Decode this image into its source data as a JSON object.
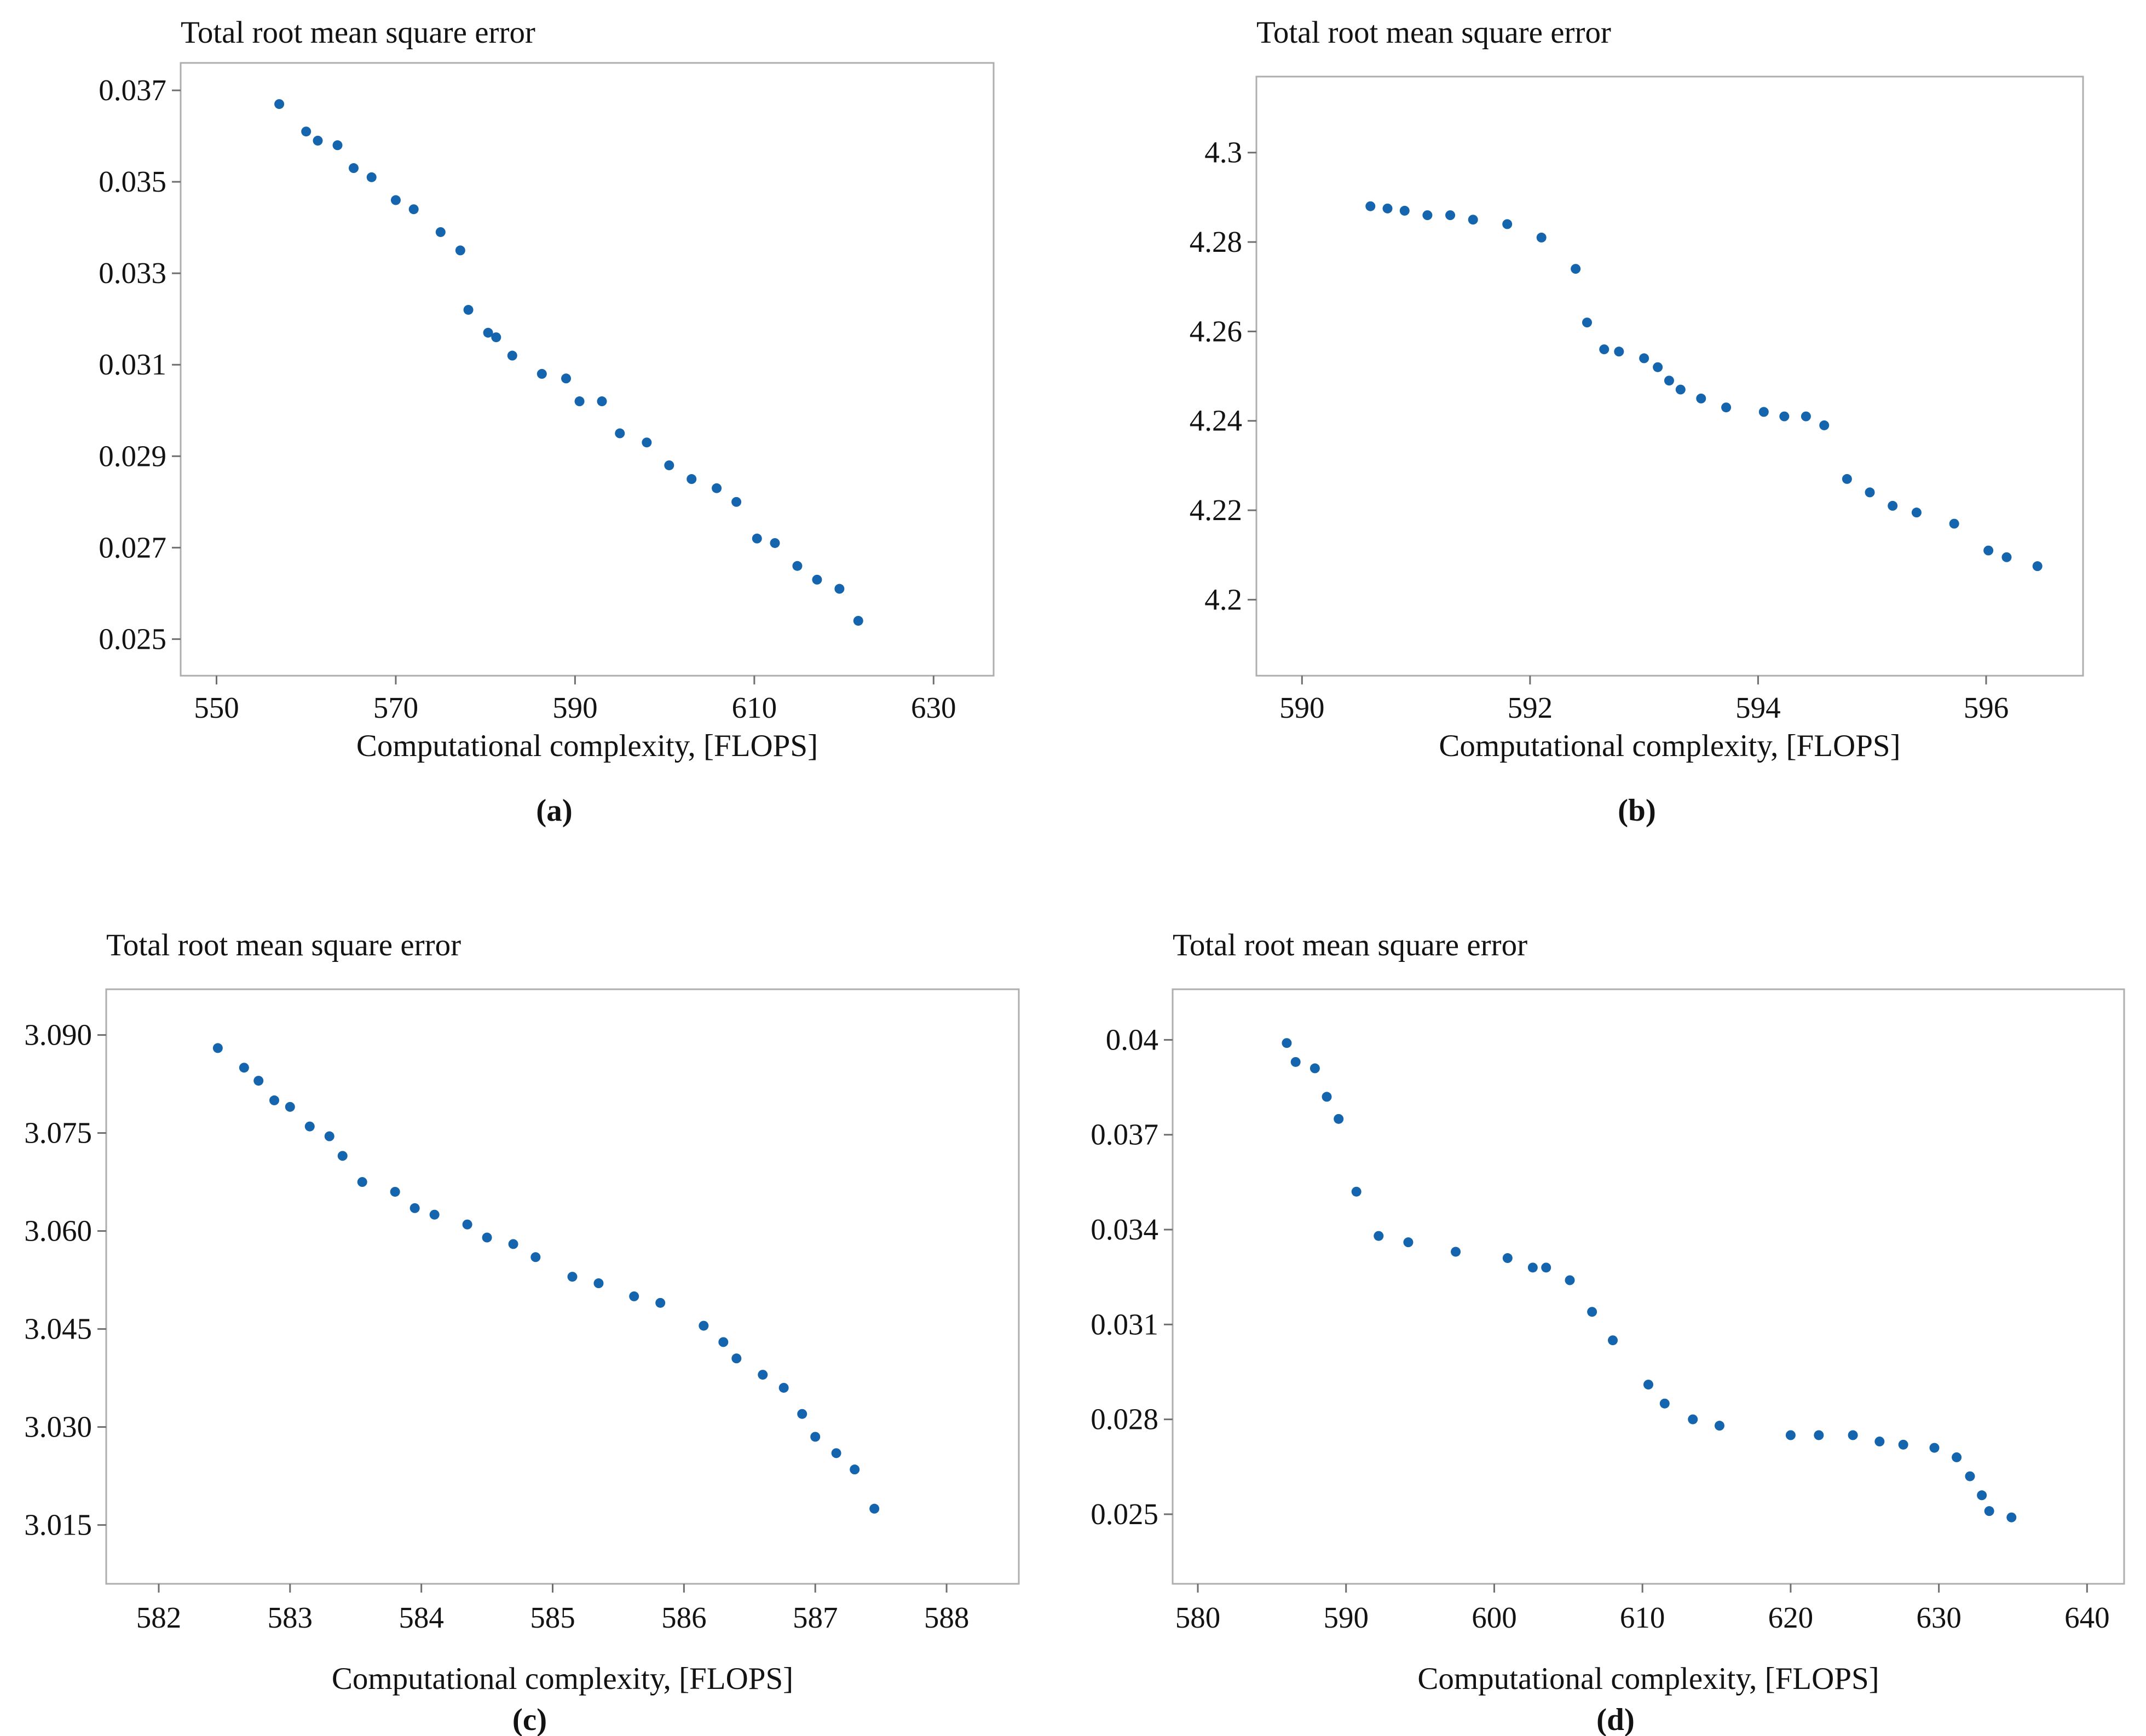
{
  "figure": {
    "background_color": "#ffffff",
    "point_color": "#1565ae",
    "frame_color": "#aeaeae",
    "tick_color": "#6f6f6f",
    "text_color": "#131313"
  },
  "chart_data": [
    {
      "id": "a",
      "type": "scatter",
      "title": "Total root mean square error",
      "xlabel": "Computational complexity, [FLOPS]",
      "caption": "(a)",
      "legend": "none",
      "grid": "off",
      "xlim": [
        546,
        636.7
      ],
      "ylim": [
        0.0242,
        0.0376
      ],
      "xticks": [
        {
          "v": 550,
          "label": "550"
        },
        {
          "v": 570,
          "label": "570"
        },
        {
          "v": 590,
          "label": "590"
        },
        {
          "v": 610,
          "label": "610"
        },
        {
          "v": 630,
          "label": "630"
        }
      ],
      "yticks": [
        {
          "v": 0.037,
          "label": "0.037"
        },
        {
          "v": 0.035,
          "label": "0.035"
        },
        {
          "v": 0.033,
          "label": "0.033"
        },
        {
          "v": 0.031,
          "label": "0.031"
        },
        {
          "v": 0.029,
          "label": "0.029"
        },
        {
          "v": 0.027,
          "label": "0.027"
        },
        {
          "v": 0.025,
          "label": "0.025"
        }
      ],
      "points": [
        [
          557,
          0.0367
        ],
        [
          560,
          0.0361
        ],
        [
          561.3,
          0.0359
        ],
        [
          563.5,
          0.0358
        ],
        [
          565.3,
          0.0353
        ],
        [
          567.3,
          0.0351
        ],
        [
          570,
          0.0346
        ],
        [
          572,
          0.0344
        ],
        [
          575,
          0.0339
        ],
        [
          577.2,
          0.0335
        ],
        [
          578.1,
          0.0322
        ],
        [
          580.3,
          0.0317
        ],
        [
          581.2,
          0.0316
        ],
        [
          583,
          0.0312
        ],
        [
          586.3,
          0.0308
        ],
        [
          589,
          0.0307
        ],
        [
          590.5,
          0.0302
        ],
        [
          593,
          0.0302
        ],
        [
          595,
          0.0295
        ],
        [
          598,
          0.0293
        ],
        [
          600.5,
          0.0288
        ],
        [
          603,
          0.0285
        ],
        [
          605.8,
          0.0283
        ],
        [
          608,
          0.028
        ],
        [
          610.3,
          0.0272
        ],
        [
          612.3,
          0.0271
        ],
        [
          614.8,
          0.0266
        ],
        [
          617,
          0.0263
        ],
        [
          619.5,
          0.0261
        ],
        [
          621.6,
          0.0254
        ]
      ]
    },
    {
      "id": "b",
      "type": "scatter",
      "title": "Total root mean square error",
      "xlabel": "Computational complexity, [FLOPS]",
      "caption": "(b)",
      "legend": "none",
      "grid": "off",
      "xlim": [
        589.6,
        596.85
      ],
      "ylim": [
        4.183,
        4.317
      ],
      "xticks": [
        {
          "v": 590,
          "label": "590"
        },
        {
          "v": 592,
          "label": "592"
        },
        {
          "v": 594,
          "label": "594"
        },
        {
          "v": 596,
          "label": "596"
        }
      ],
      "yticks": [
        {
          "v": 4.3,
          "label": "4.3"
        },
        {
          "v": 4.28,
          "label": "4.28"
        },
        {
          "v": 4.26,
          "label": "4.26"
        },
        {
          "v": 4.24,
          "label": "4.24"
        },
        {
          "v": 4.22,
          "label": "4.22"
        },
        {
          "v": 4.2,
          "label": "4.2"
        }
      ],
      "points": [
        [
          590.6,
          4.288
        ],
        [
          590.75,
          4.2875
        ],
        [
          590.9,
          4.287
        ],
        [
          591.1,
          4.286
        ],
        [
          591.3,
          4.286
        ],
        [
          591.5,
          4.285
        ],
        [
          591.8,
          4.284
        ],
        [
          592.1,
          4.281
        ],
        [
          592.4,
          4.274
        ],
        [
          592.5,
          4.262
        ],
        [
          592.65,
          4.256
        ],
        [
          592.78,
          4.2555
        ],
        [
          593.0,
          4.254
        ],
        [
          593.12,
          4.252
        ],
        [
          593.22,
          4.249
        ],
        [
          593.32,
          4.247
        ],
        [
          593.5,
          4.245
        ],
        [
          593.72,
          4.243
        ],
        [
          594.05,
          4.242
        ],
        [
          594.23,
          4.241
        ],
        [
          594.42,
          4.241
        ],
        [
          594.58,
          4.239
        ],
        [
          594.78,
          4.227
        ],
        [
          594.98,
          4.224
        ],
        [
          595.18,
          4.221
        ],
        [
          595.39,
          4.2195
        ],
        [
          595.72,
          4.217
        ],
        [
          596.02,
          4.211
        ],
        [
          596.18,
          4.2095
        ],
        [
          596.45,
          4.2075
        ]
      ]
    },
    {
      "id": "c",
      "type": "scatter",
      "title": "Total root mean square error",
      "xlabel": "Computational complexity, [FLOPS]",
      "caption": "(c)",
      "legend": "none",
      "grid": "off",
      "xlim": [
        581.6,
        588.55
      ],
      "ylim": [
        3.006,
        3.097
      ],
      "xticks": [
        {
          "v": 582,
          "label": "582"
        },
        {
          "v": 583,
          "label": "583"
        },
        {
          "v": 584,
          "label": "584"
        },
        {
          "v": 585,
          "label": "585"
        },
        {
          "v": 586,
          "label": "586"
        },
        {
          "v": 587,
          "label": "587"
        },
        {
          "v": 588,
          "label": "588"
        }
      ],
      "yticks": [
        {
          "v": 3.09,
          "label": "3.090"
        },
        {
          "v": 3.075,
          "label": "3.075"
        },
        {
          "v": 3.06,
          "label": "3.060"
        },
        {
          "v": 3.045,
          "label": "3.045"
        },
        {
          "v": 3.03,
          "label": "3.030"
        },
        {
          "v": 3.015,
          "label": "3.015"
        }
      ],
      "points": [
        [
          582.45,
          3.088
        ],
        [
          582.65,
          3.085
        ],
        [
          582.76,
          3.083
        ],
        [
          582.88,
          3.08
        ],
        [
          583.0,
          3.079
        ],
        [
          583.15,
          3.076
        ],
        [
          583.3,
          3.0745
        ],
        [
          583.4,
          3.0715
        ],
        [
          583.55,
          3.0675
        ],
        [
          583.8,
          3.066
        ],
        [
          583.95,
          3.0635
        ],
        [
          584.1,
          3.0625
        ],
        [
          584.35,
          3.061
        ],
        [
          584.5,
          3.059
        ],
        [
          584.7,
          3.058
        ],
        [
          584.87,
          3.056
        ],
        [
          585.15,
          3.053
        ],
        [
          585.35,
          3.052
        ],
        [
          585.62,
          3.05
        ],
        [
          585.82,
          3.049
        ],
        [
          586.15,
          3.0455
        ],
        [
          586.3,
          3.043
        ],
        [
          586.4,
          3.0405
        ],
        [
          586.6,
          3.038
        ],
        [
          586.76,
          3.036
        ],
        [
          586.9,
          3.032
        ],
        [
          587.0,
          3.0285
        ],
        [
          587.16,
          3.026
        ],
        [
          587.3,
          3.0235
        ],
        [
          587.45,
          3.0175
        ]
      ]
    },
    {
      "id": "d",
      "type": "scatter",
      "title": "Total root mean square error",
      "xlabel": "Computational complexity, [FLOPS]",
      "caption": "(d)",
      "legend": "none",
      "grid": "off",
      "xlim": [
        578.3,
        642.5
      ],
      "ylim": [
        0.0228,
        0.0416
      ],
      "xticks": [
        {
          "v": 580,
          "label": "580"
        },
        {
          "v": 590,
          "label": "590"
        },
        {
          "v": 600,
          "label": "600"
        },
        {
          "v": 610,
          "label": "610"
        },
        {
          "v": 620,
          "label": "620"
        },
        {
          "v": 630,
          "label": "630"
        },
        {
          "v": 640,
          "label": "640"
        }
      ],
      "yticks": [
        {
          "v": 0.04,
          "label": "0.04"
        },
        {
          "v": 0.037,
          "label": "0.037"
        },
        {
          "v": 0.034,
          "label": "0.034"
        },
        {
          "v": 0.031,
          "label": "0.031"
        },
        {
          "v": 0.028,
          "label": "0.028"
        },
        {
          "v": 0.025,
          "label": "0.025"
        }
      ],
      "points": [
        [
          586,
          0.0399
        ],
        [
          586.6,
          0.0393
        ],
        [
          587.9,
          0.0391
        ],
        [
          588.7,
          0.0382
        ],
        [
          589.5,
          0.0375
        ],
        [
          590.7,
          0.0352
        ],
        [
          592.2,
          0.0338
        ],
        [
          594.2,
          0.0336
        ],
        [
          597.4,
          0.0333
        ],
        [
          600.9,
          0.0331
        ],
        [
          602.6,
          0.0328
        ],
        [
          603.5,
          0.0328
        ],
        [
          605.1,
          0.0324
        ],
        [
          606.6,
          0.0314
        ],
        [
          608,
          0.0305
        ],
        [
          610.4,
          0.0291
        ],
        [
          611.5,
          0.0285
        ],
        [
          613.4,
          0.028
        ],
        [
          615.2,
          0.0278
        ],
        [
          620,
          0.0275
        ],
        [
          621.9,
          0.0275
        ],
        [
          624.2,
          0.0275
        ],
        [
          626,
          0.0273
        ],
        [
          627.6,
          0.0272
        ],
        [
          629.7,
          0.0271
        ],
        [
          631.2,
          0.0268
        ],
        [
          632.1,
          0.0262
        ],
        [
          632.9,
          0.0256
        ],
        [
          633.4,
          0.0251
        ],
        [
          634.9,
          0.0249
        ]
      ]
    }
  ]
}
